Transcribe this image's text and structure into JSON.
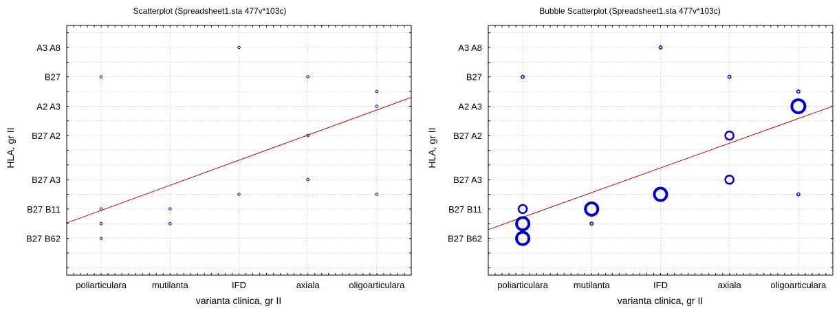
{
  "chart_data": [
    {
      "type": "scatter",
      "title": "Scatterplot (Spreadsheet1.sta 477v*103c)",
      "xlabel": "varianta clinica, gr II",
      "ylabel": "HLA, gr II",
      "x_categories": [
        "poliarticulara",
        "mutilanta",
        "IFD",
        "axiala",
        "oligoarticulara"
      ],
      "y_tick_labels": [
        "A3 A8",
        "B27",
        "A2 A3",
        "B27 A2",
        "B27 A3",
        "B27 B11",
        "B27 B62"
      ],
      "y_tick_values": [
        1,
        3,
        5,
        7,
        10,
        12,
        14
      ],
      "ylim": [
        16.5,
        -0.5
      ],
      "points": [
        {
          "x": "poliarticulara",
          "y": 3
        },
        {
          "x": "poliarticulara",
          "y": 12
        },
        {
          "x": "poliarticulara",
          "y": 13
        },
        {
          "x": "poliarticulara",
          "y": 14
        },
        {
          "x": "mutilanta",
          "y": 12
        },
        {
          "x": "mutilanta",
          "y": 13
        },
        {
          "x": "IFD",
          "y": 1
        },
        {
          "x": "IFD",
          "y": 11
        },
        {
          "x": "axiala",
          "y": 3
        },
        {
          "x": "axiala",
          "y": 7
        },
        {
          "x": "axiala",
          "y": 10
        },
        {
          "x": "oligoarticulara",
          "y": 4
        },
        {
          "x": "oligoarticulara",
          "y": 5
        },
        {
          "x": "oligoarticulara",
          "y": 11
        }
      ],
      "fit_line": {
        "x_start": 0.5,
        "y_start": 12.95,
        "x_end": 5.5,
        "y_end": 4.4
      },
      "grid": true,
      "colors": {
        "points": "#0000cc",
        "fit": "#c00000"
      }
    },
    {
      "type": "scatter",
      "title": "Bubble Scatterplot (Spreadsheet1.sta 477v*103c)",
      "xlabel": "varianta clinica, gr II",
      "ylabel": "HLA, gr II",
      "x_categories": [
        "poliarticulara",
        "mutilanta",
        "IFD",
        "axiala",
        "oligoarticulara"
      ],
      "y_tick_labels": [
        "A3 A8",
        "B27",
        "A2 A3",
        "B27 A2",
        "B27 A3",
        "B27 B11",
        "B27 B62"
      ],
      "y_tick_values": [
        1,
        3,
        5,
        7,
        10,
        12,
        14
      ],
      "ylim": [
        16.5,
        -0.5
      ],
      "points": [
        {
          "x": "poliarticulara",
          "y": 3,
          "size": 1
        },
        {
          "x": "poliarticulara",
          "y": 12,
          "size": 2
        },
        {
          "x": "poliarticulara",
          "y": 13,
          "size": 3
        },
        {
          "x": "poliarticulara",
          "y": 14,
          "size": 3
        },
        {
          "x": "mutilanta",
          "y": 12,
          "size": 3
        },
        {
          "x": "mutilanta",
          "y": 13,
          "size": 1
        },
        {
          "x": "IFD",
          "y": 1,
          "size": 1
        },
        {
          "x": "IFD",
          "y": 11,
          "size": 3
        },
        {
          "x": "axiala",
          "y": 3,
          "size": 1
        },
        {
          "x": "axiala",
          "y": 7,
          "size": 2
        },
        {
          "x": "axiala",
          "y": 10,
          "size": 2
        },
        {
          "x": "oligoarticulara",
          "y": 4,
          "size": 1
        },
        {
          "x": "oligoarticulara",
          "y": 5,
          "size": 4
        },
        {
          "x": "oligoarticulara",
          "y": 11,
          "size": 1
        }
      ],
      "fit_line": {
        "x_start": 0.5,
        "y_start": 13.4,
        "x_end": 5.5,
        "y_end": 5.0
      },
      "grid": true,
      "colors": {
        "points": "#0000cc",
        "fit": "#c00000"
      }
    }
  ]
}
